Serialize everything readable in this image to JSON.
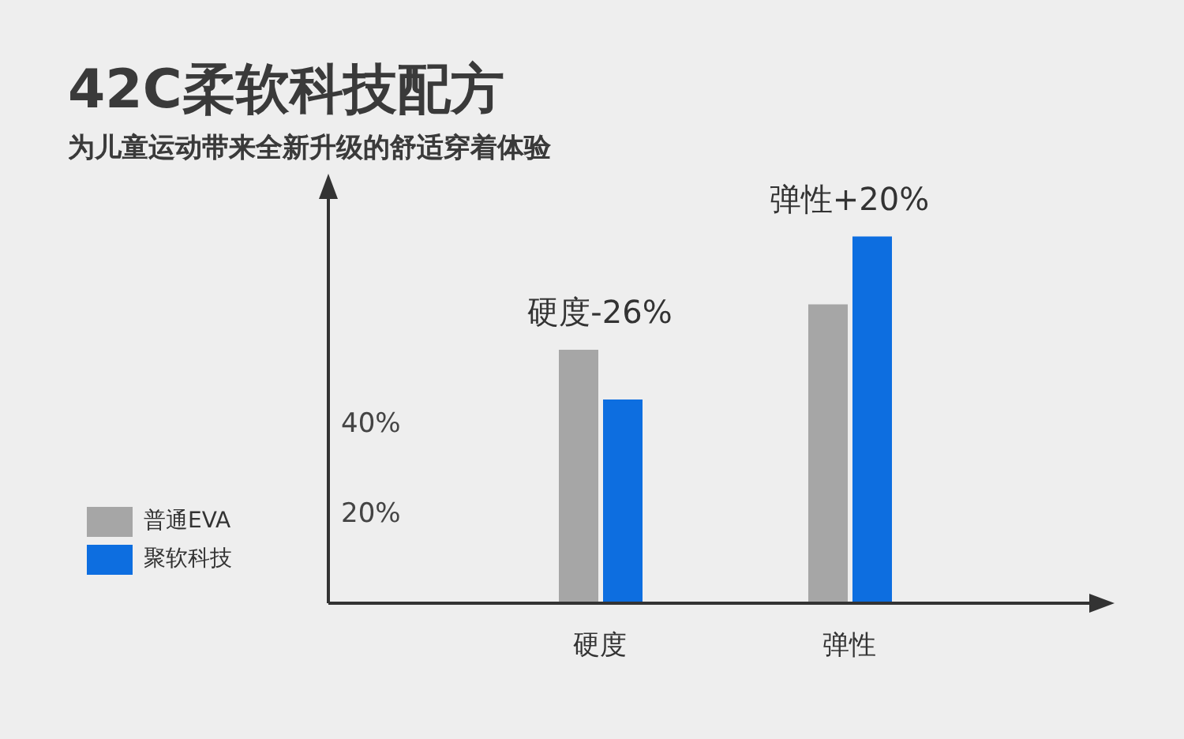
{
  "chart_data": {
    "type": "bar",
    "title": "42C柔软科技配方",
    "subtitle": "为儿童运动带来全新升级的舒适穿着体验",
    "categories": [
      "硬度",
      "弹性"
    ],
    "series": [
      {
        "name": "普通EVA",
        "color": "#a6a6a6",
        "values": [
          56,
          66
        ]
      },
      {
        "name": "聚软科技",
        "color": "#0d6ee0",
        "values": [
          45,
          81
        ]
      }
    ],
    "ylim": [
      0,
      90
    ],
    "yticks": [
      {
        "value": 20,
        "label": "20%"
      },
      {
        "value": 40,
        "label": "40%"
      }
    ],
    "annotations": [
      {
        "text": "硬度-26%",
        "x": "硬度",
        "y": 56
      },
      {
        "text": "弹性+20%",
        "x": "弹性",
        "y": 81
      }
    ],
    "legend": "left"
  }
}
